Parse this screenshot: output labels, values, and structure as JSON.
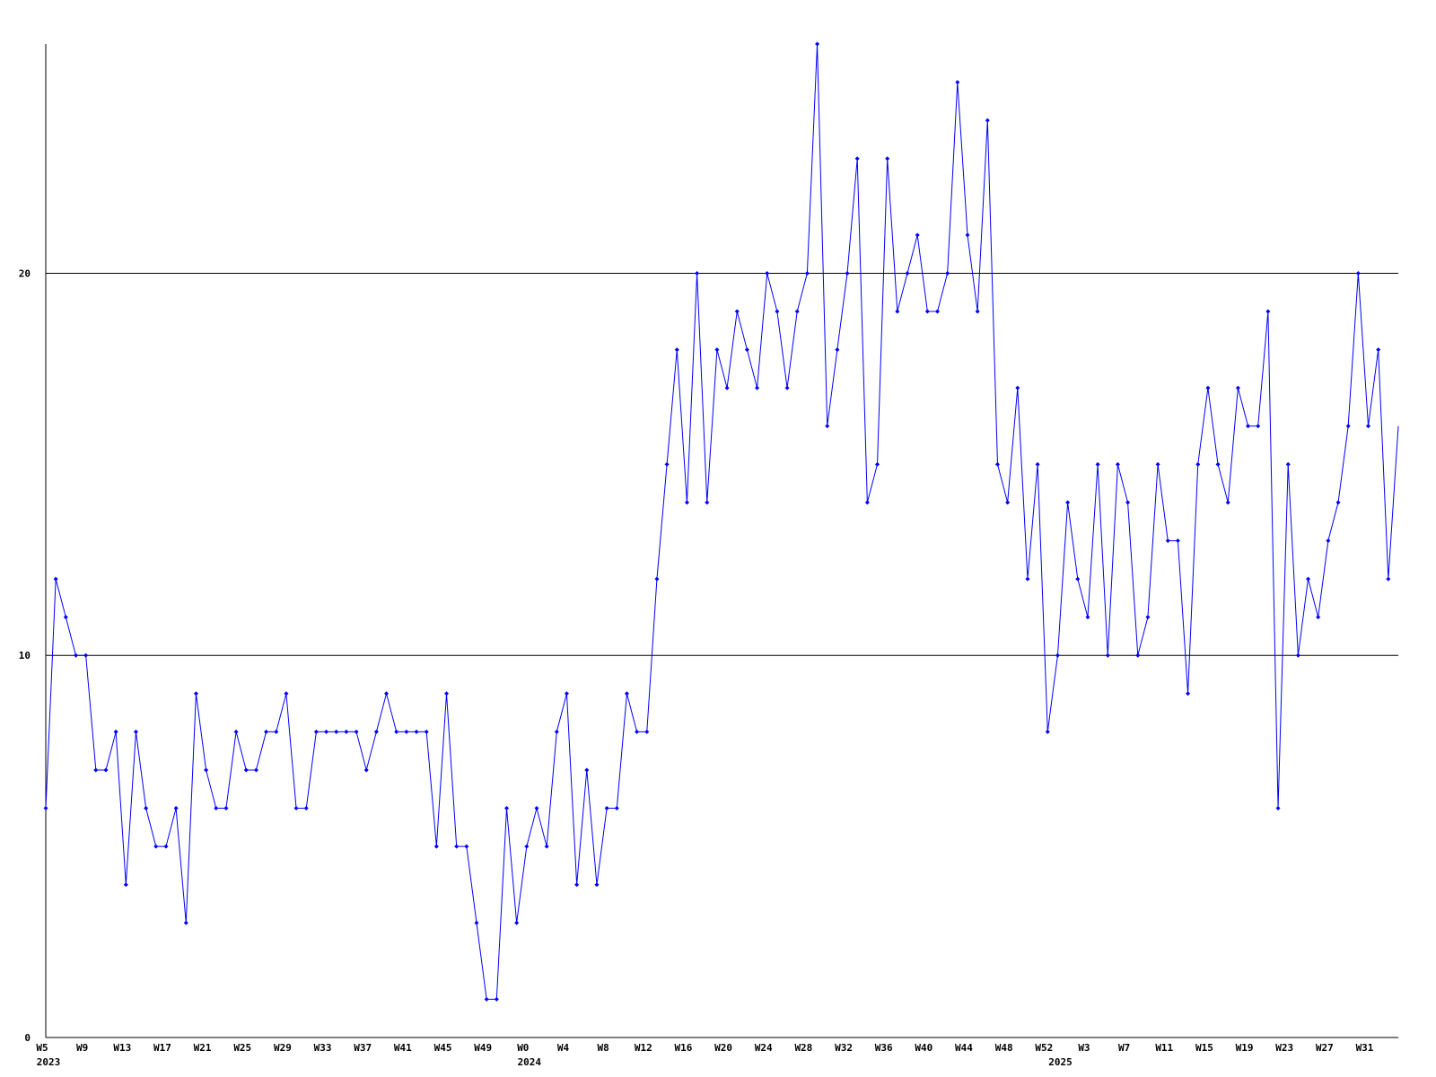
{
  "chart_data": {
    "type": "line",
    "categories": [
      "W5",
      null,
      null,
      null,
      "W9",
      null,
      null,
      null,
      "W13",
      null,
      null,
      null,
      "W17",
      null,
      null,
      null,
      "W21",
      null,
      null,
      null,
      "W25",
      null,
      null,
      null,
      "W29",
      null,
      null,
      null,
      "W33",
      null,
      null,
      null,
      "W37",
      null,
      null,
      null,
      "W41",
      null,
      null,
      null,
      "W45",
      null,
      null,
      null,
      "W49",
      null,
      null,
      null,
      "W0",
      null,
      null,
      null,
      "W4",
      null,
      null,
      null,
      "W8",
      null,
      null,
      null,
      "W12",
      null,
      null,
      null,
      "W16",
      null,
      null,
      null,
      "W20",
      null,
      null,
      null,
      "W24",
      null,
      null,
      null,
      "W28",
      null,
      null,
      null,
      "W32",
      null,
      null,
      null,
      "W36",
      null,
      null,
      null,
      "W40",
      null,
      null,
      null,
      "W44",
      null,
      null,
      null,
      "W48",
      null,
      null,
      null,
      "W52",
      null,
      null,
      null,
      "W3",
      null,
      null,
      null,
      "W7",
      null,
      null,
      null,
      "W11",
      null,
      null,
      null,
      "W15",
      null,
      null,
      null,
      "W19",
      null,
      null,
      null,
      "W23",
      null,
      null,
      null,
      "W27",
      null,
      null,
      null,
      "W31",
      null,
      null,
      null
    ],
    "category_groups": [
      "2023",
      null,
      null,
      null,
      null,
      null,
      null,
      null,
      null,
      null,
      null,
      null,
      null,
      null,
      null,
      null,
      null,
      null,
      null,
      null,
      null,
      null,
      null,
      null,
      null,
      null,
      null,
      null,
      null,
      null,
      null,
      null,
      null,
      null,
      null,
      null,
      null,
      null,
      null,
      null,
      null,
      null,
      null,
      null,
      null,
      null,
      null,
      null,
      "2024",
      null,
      null,
      null,
      null,
      null,
      null,
      null,
      null,
      null,
      null,
      null,
      null,
      null,
      null,
      null,
      null,
      null,
      null,
      null,
      null,
      null,
      null,
      null,
      null,
      null,
      null,
      null,
      null,
      null,
      null,
      null,
      null,
      null,
      null,
      null,
      null,
      null,
      null,
      null,
      null,
      null,
      null,
      null,
      null,
      null,
      null,
      null,
      null,
      null,
      null,
      null,
      null,
      "2025",
      null,
      null,
      null,
      null,
      null,
      null,
      null,
      null,
      null,
      null,
      null,
      null,
      null,
      null,
      null,
      null,
      null,
      null,
      null,
      null,
      null,
      null,
      null,
      null,
      null,
      null,
      null,
      null,
      null,
      null,
      null,
      null,
      null,
      null
    ],
    "series": [
      {
        "color": "#0000ff",
        "values": [
          6,
          12,
          11,
          10,
          10,
          7,
          7,
          8,
          4,
          8,
          6,
          5,
          5,
          6,
          3,
          9,
          7,
          6,
          6,
          8,
          7,
          7,
          8,
          8,
          9,
          6,
          6,
          8,
          8,
          8,
          8,
          8,
          7,
          8,
          9,
          8,
          8,
          8,
          8,
          5,
          9,
          5,
          5,
          3,
          1,
          1,
          6,
          3,
          5,
          6,
          5,
          8,
          9,
          4,
          7,
          4,
          6,
          6,
          9,
          8,
          8,
          12,
          15,
          18,
          14,
          20,
          14,
          18,
          17,
          19,
          18,
          17,
          20,
          19,
          17,
          19,
          20,
          26,
          16,
          18,
          20,
          23,
          14,
          15,
          23,
          19,
          20,
          21,
          19,
          19,
          20,
          25,
          21,
          19,
          24,
          15,
          14,
          17,
          12,
          15,
          8,
          10,
          14,
          12,
          11,
          15,
          10,
          15,
          14,
          10,
          11,
          15,
          13,
          13,
          9,
          15,
          17,
          15,
          14,
          17,
          16,
          16,
          19,
          6,
          15,
          10,
          12,
          11,
          13,
          14,
          16,
          20,
          16,
          18,
          12,
          16
        ]
      }
    ],
    "ylim": [
      0,
      26
    ],
    "yticks": [
      0,
      10,
      20
    ],
    "grid": true
  }
}
